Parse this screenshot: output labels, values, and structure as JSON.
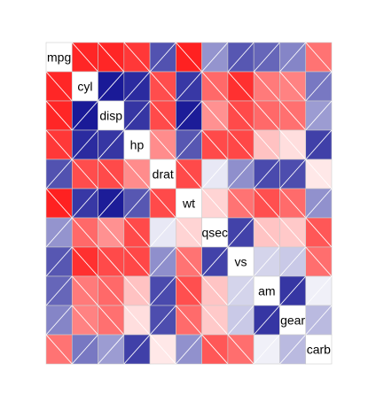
{
  "chart_data": {
    "type": "heatmap",
    "variables": [
      "mpg",
      "cyl",
      "disp",
      "hp",
      "drat",
      "wt",
      "qsec",
      "vs",
      "am",
      "gear",
      "carb"
    ],
    "matrix": [
      [
        1.0,
        -0.85,
        -0.85,
        -0.78,
        0.68,
        -0.87,
        0.42,
        0.66,
        0.6,
        0.48,
        -0.55
      ],
      [
        -0.85,
        1.0,
        0.9,
        0.83,
        -0.7,
        0.78,
        -0.59,
        -0.81,
        -0.52,
        -0.49,
        0.53
      ],
      [
        -0.85,
        0.9,
        1.0,
        0.79,
        -0.71,
        0.89,
        -0.43,
        -0.71,
        -0.59,
        -0.56,
        0.39
      ],
      [
        -0.78,
        0.83,
        0.79,
        1.0,
        -0.45,
        0.66,
        -0.71,
        -0.72,
        -0.24,
        -0.13,
        0.75
      ],
      [
        0.68,
        -0.7,
        -0.71,
        -0.45,
        1.0,
        -0.71,
        0.09,
        0.44,
        0.71,
        0.7,
        -0.09
      ],
      [
        -0.87,
        0.78,
        0.89,
        0.66,
        -0.71,
        1.0,
        -0.17,
        -0.55,
        -0.69,
        -0.58,
        0.43
      ],
      [
        0.42,
        -0.59,
        -0.43,
        -0.71,
        0.09,
        -0.17,
        1.0,
        0.74,
        -0.23,
        -0.21,
        -0.66
      ],
      [
        0.66,
        -0.81,
        -0.71,
        -0.72,
        0.44,
        -0.55,
        0.74,
        1.0,
        0.17,
        0.21,
        -0.57
      ],
      [
        0.6,
        -0.52,
        -0.59,
        -0.24,
        0.71,
        -0.69,
        -0.23,
        0.17,
        1.0,
        0.79,
        0.06
      ],
      [
        0.48,
        -0.49,
        -0.56,
        -0.13,
        0.7,
        -0.58,
        -0.21,
        0.21,
        0.79,
        1.0,
        0.27
      ],
      [
        -0.55,
        0.53,
        0.39,
        0.75,
        -0.09,
        0.43,
        -0.66,
        -0.57,
        0.06,
        0.27,
        1.0
      ]
    ],
    "value_range": [
      -1,
      1
    ],
    "colors": {
      "negative": "#ff0000",
      "zero": "#ffffff",
      "positive": "#00008b",
      "grid": "#cccccc",
      "stripe": "#ffffff"
    },
    "grid": true,
    "legend": "none"
  }
}
